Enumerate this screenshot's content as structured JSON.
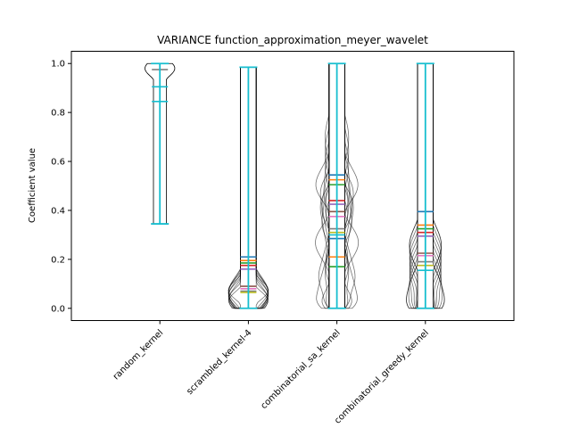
{
  "chart_data": {
    "type": "violin",
    "title": "VARIANCE function_approximation_meyer_wavelet",
    "xlabel": "",
    "ylabel": "Coefficient value",
    "ylim": [
      -0.05,
      1.05
    ],
    "yticks": [
      0.0,
      0.2,
      0.4,
      0.6,
      0.8,
      1.0
    ],
    "ytick_labels": [
      "0.0",
      "0.2",
      "0.4",
      "0.6",
      "0.8",
      "1.0"
    ],
    "categories": [
      "random_kernel",
      "scrambled_kernel-4",
      "combinatorial_sa_kernel",
      "combinatorial_greedy_kernel"
    ],
    "category_labels_rotation_deg": 45,
    "groups": [
      {
        "category": "random_kernel",
        "min": 0.345,
        "max": 1.0,
        "medians": [
          0.975,
          0.905,
          0.845
        ],
        "body_color": "#000000"
      },
      {
        "category": "scrambled_kernel-4",
        "min": 0.0,
        "max": 0.985,
        "medians": [
          0.21,
          0.195,
          0.185,
          0.175,
          0.16,
          0.09,
          0.08,
          0.07,
          0.065
        ],
        "body_color": "#000000"
      },
      {
        "category": "combinatorial_sa_kernel",
        "min": 0.0,
        "max": 1.0,
        "medians": [
          0.545,
          0.525,
          0.505,
          0.44,
          0.425,
          0.395,
          0.375,
          0.325,
          0.31,
          0.3,
          0.285,
          0.21,
          0.17
        ],
        "body_color": "#000000"
      },
      {
        "category": "combinatorial_greedy_kernel",
        "min": 0.0,
        "max": 1.0,
        "medians": [
          0.395,
          0.34,
          0.325,
          0.31,
          0.295,
          0.225,
          0.215,
          0.19,
          0.175,
          0.155
        ],
        "body_color": "#000000"
      }
    ],
    "palette": [
      "#1f77b4",
      "#ff7f0e",
      "#2ca02c",
      "#d62728",
      "#9467bd",
      "#8c564b",
      "#e377c2",
      "#7f7f7f",
      "#bcbd22",
      "#17becf"
    ],
    "grid": false,
    "legend": "none"
  }
}
